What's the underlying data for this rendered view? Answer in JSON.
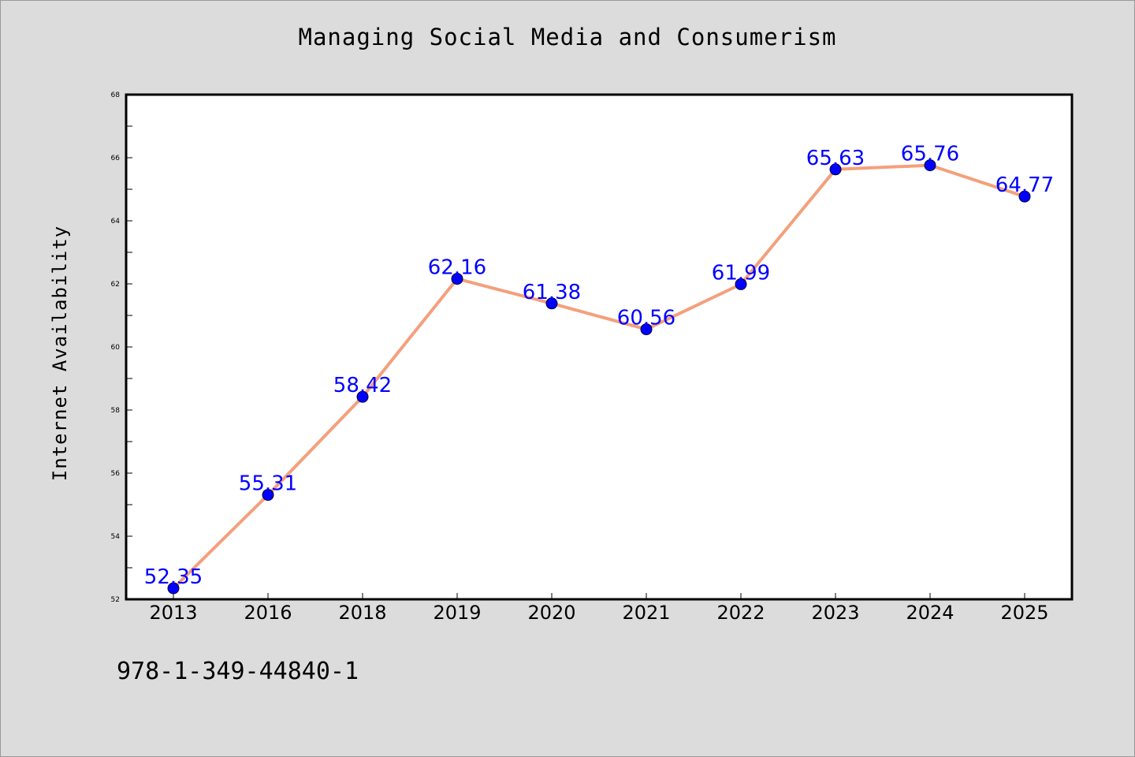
{
  "chart_data": {
    "type": "line",
    "title": "Managing Social Media and Consumerism",
    "xlabel": "",
    "ylabel": "Internet Availability",
    "categories": [
      "2013",
      "2016",
      "2018",
      "2019",
      "2020",
      "2021",
      "2022",
      "2023",
      "2024",
      "2025"
    ],
    "series": [
      {
        "values": [
          52.35,
          55.31,
          58.42,
          62.16,
          61.38,
          60.56,
          61.99,
          65.63,
          65.76,
          64.77
        ],
        "data_labels": [
          "52.35",
          "55.31",
          "58.42",
          "62.16",
          "61.38",
          "60.56",
          "61.99",
          "65.63",
          "65.76",
          "64.77"
        ]
      }
    ],
    "ylim": [
      52,
      68
    ],
    "yticks": [
      "52",
      "54",
      "56",
      "58",
      "60",
      "62",
      "64",
      "66",
      "68"
    ],
    "grid": false,
    "legend": "none",
    "colors": {
      "line": "#f4a07c",
      "marker": "#0000ff",
      "data_label": "#0000ff",
      "background": "#dcdcdc",
      "plot_background": "#ffffff"
    }
  },
  "footer": {
    "code": "978-1-349-44840-1"
  }
}
